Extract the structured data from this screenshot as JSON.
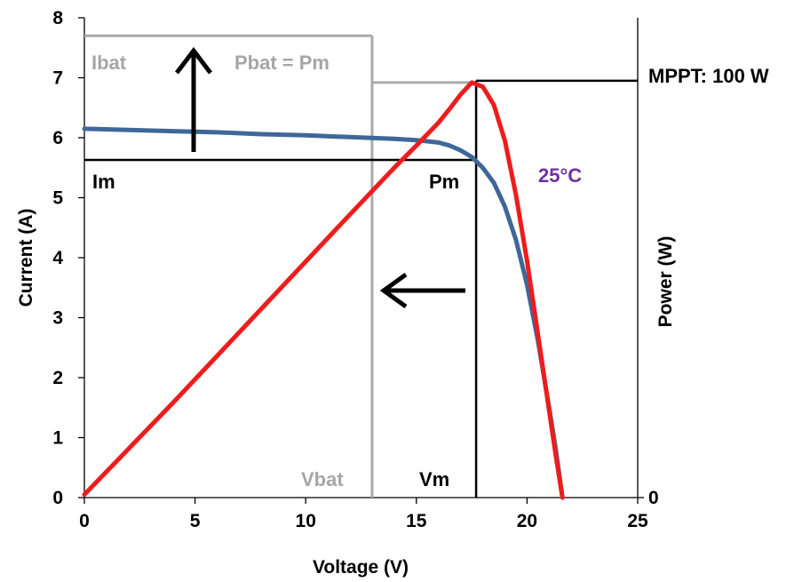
{
  "chart_data": {
    "type": "line",
    "xlabel": "Voltage (V)",
    "ylabel": "Current (A)",
    "y2label": "Power (W)",
    "xlim": [
      0,
      25
    ],
    "ylim": [
      0,
      8
    ],
    "x_ticks": [
      0,
      5,
      10,
      15,
      20,
      25
    ],
    "y_ticks": [
      0,
      1,
      2,
      3,
      4,
      5,
      6,
      7,
      8
    ],
    "y2_ticks": [
      {
        "at": 0,
        "label": "0"
      }
    ],
    "grid": false,
    "series": [
      {
        "color": "#3f6799",
        "x": [
          0,
          2,
          4,
          6,
          8,
          10,
          12,
          14,
          15,
          16,
          16.5,
          17,
          17.5,
          18,
          18.5,
          19,
          19.5,
          20,
          20.5,
          21,
          21.3,
          21.6
        ],
        "y": [
          6.15,
          6.13,
          6.11,
          6.09,
          6.06,
          6.04,
          6.01,
          5.98,
          5.96,
          5.92,
          5.87,
          5.79,
          5.68,
          5.5,
          5.25,
          4.85,
          4.3,
          3.55,
          2.6,
          1.5,
          0.8,
          0
        ]
      },
      {
        "color": "#ee1c1c",
        "x": [
          0,
          4,
          8,
          12,
          14,
          15,
          16,
          16.5,
          17,
          17.5,
          18,
          18.5,
          19,
          19.5,
          20,
          20.5,
          21,
          21.3,
          21.6
        ],
        "y": [
          0.05,
          1.58,
          3.15,
          4.72,
          5.5,
          5.87,
          6.25,
          6.48,
          6.72,
          6.92,
          6.85,
          6.55,
          5.95,
          5.05,
          3.95,
          2.7,
          1.45,
          0.7,
          0
        ]
      }
    ],
    "annotations": {
      "mppt": "MPPT: 100 W",
      "temperature": "25°C",
      "pbat_eq": "Pbat = Pm",
      "ibat": "Ibat",
      "im": "Im",
      "pm": "Pm",
      "vbat": "Vbat",
      "vm": "Vm"
    },
    "reference_values": {
      "im_y": 5.63,
      "vm_x": 17.7,
      "vbat_x": 13,
      "ibat_y": 7.7,
      "pm_y": 6.95,
      "pbat_level_y": 6.92
    },
    "colors": {
      "current_curve": "#3f6799",
      "power_curve": "#ee1c1c",
      "battery_lines": "#aaaaaa",
      "temperature_label": "#7030a0",
      "battery_labels": "#a6a6a6"
    }
  }
}
